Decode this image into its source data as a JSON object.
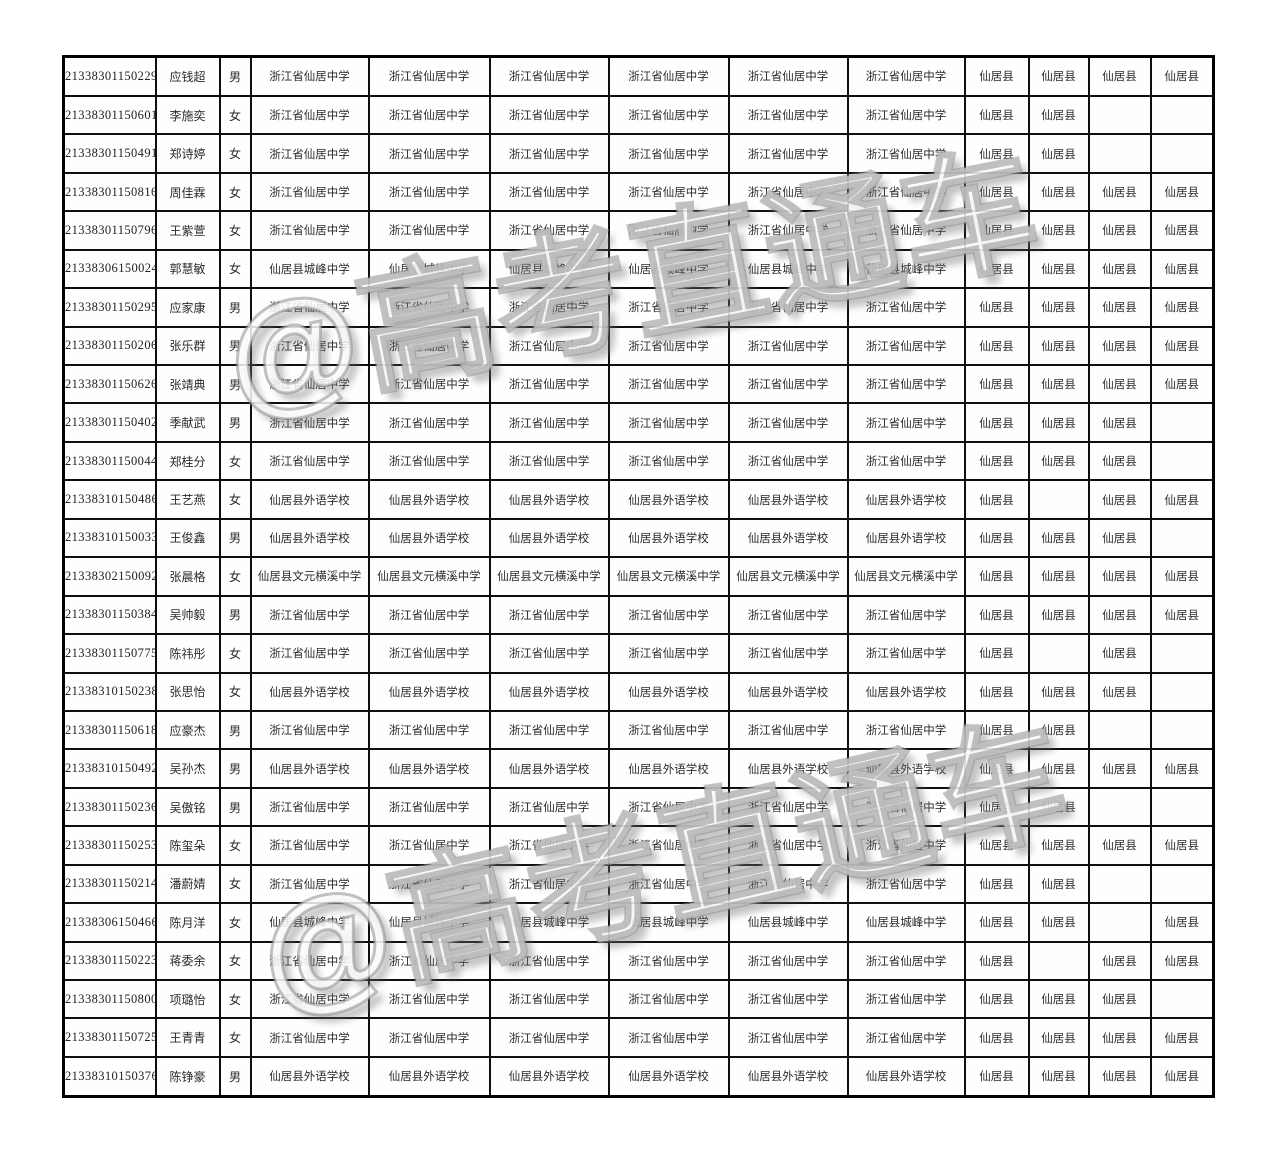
{
  "watermark": {
    "text": "@高考直通车",
    "stroke_color": "#8f8f8f"
  },
  "table": {
    "grid_color": "#0f0f0f",
    "rows": [
      {
        "id": "21338301150229",
        "name": "应钱超",
        "gender": "男",
        "school": "浙江省仙居中学",
        "counties": [
          "仙居县",
          "仙居县",
          "仙居县",
          "仙居县"
        ]
      },
      {
        "id": "21338301150601",
        "name": "李施奕",
        "gender": "女",
        "school": "浙江省仙居中学",
        "counties": [
          "仙居县",
          "仙居县",
          "",
          ""
        ]
      },
      {
        "id": "21338301150491",
        "name": "郑诗婷",
        "gender": "女",
        "school": "浙江省仙居中学",
        "counties": [
          "仙居县",
          "仙居县",
          "",
          ""
        ]
      },
      {
        "id": "21338301150816",
        "name": "周佳霖",
        "gender": "女",
        "school": "浙江省仙居中学",
        "counties": [
          "仙居县",
          "仙居县",
          "仙居县",
          "仙居县"
        ]
      },
      {
        "id": "21338301150796",
        "name": "王紫萱",
        "gender": "女",
        "school": "浙江省仙居中学",
        "counties": [
          "仙居县",
          "仙居县",
          "仙居县",
          "仙居县"
        ]
      },
      {
        "id": "21338306150024",
        "name": "郭慧敏",
        "gender": "女",
        "school": "仙居县城峰中学",
        "counties": [
          "仙居县",
          "仙居县",
          "仙居县",
          "仙居县"
        ]
      },
      {
        "id": "21338301150295",
        "name": "应家康",
        "gender": "男",
        "school": "浙江省仙居中学",
        "counties": [
          "仙居县",
          "仙居县",
          "仙居县",
          "仙居县"
        ]
      },
      {
        "id": "21338301150206",
        "name": "张乐群",
        "gender": "男",
        "school": "浙江省仙居中学",
        "counties": [
          "仙居县",
          "仙居县",
          "仙居县",
          "仙居县"
        ]
      },
      {
        "id": "21338301150626",
        "name": "张靖典",
        "gender": "男",
        "school": "浙江省仙居中学",
        "counties": [
          "仙居县",
          "仙居县",
          "仙居县",
          "仙居县"
        ]
      },
      {
        "id": "21338301150402",
        "name": "季献武",
        "gender": "男",
        "school": "浙江省仙居中学",
        "counties": [
          "仙居县",
          "仙居县",
          "仙居县",
          ""
        ]
      },
      {
        "id": "21338301150044",
        "name": "郑桂分",
        "gender": "女",
        "school": "浙江省仙居中学",
        "counties": [
          "仙居县",
          "仙居县",
          "仙居县",
          ""
        ]
      },
      {
        "id": "21338310150486",
        "name": "王艺燕",
        "gender": "女",
        "school": "仙居县外语学校",
        "counties": [
          "仙居县",
          "",
          "仙居县",
          "仙居县"
        ]
      },
      {
        "id": "21338310150033",
        "name": "王俊鑫",
        "gender": "男",
        "school": "仙居县外语学校",
        "counties": [
          "仙居县",
          "仙居县",
          "仙居县",
          ""
        ]
      },
      {
        "id": "21338302150092",
        "name": "张晨格",
        "gender": "女",
        "school": "仙居县文元横溪中学",
        "counties": [
          "仙居县",
          "仙居县",
          "仙居县",
          "仙居县"
        ]
      },
      {
        "id": "21338301150384",
        "name": "吴帅毅",
        "gender": "男",
        "school": "浙江省仙居中学",
        "counties": [
          "仙居县",
          "仙居县",
          "仙居县",
          "仙居县"
        ]
      },
      {
        "id": "21338301150775",
        "name": "陈祎彤",
        "gender": "女",
        "school": "浙江省仙居中学",
        "counties": [
          "仙居县",
          "",
          "仙居县",
          ""
        ]
      },
      {
        "id": "21338310150238",
        "name": "张思怡",
        "gender": "女",
        "school": "仙居县外语学校",
        "counties": [
          "仙居县",
          "仙居县",
          "仙居县",
          ""
        ]
      },
      {
        "id": "21338301150618",
        "name": "应豪杰",
        "gender": "男",
        "school": "浙江省仙居中学",
        "counties": [
          "仙居县",
          "仙居县",
          "",
          ""
        ]
      },
      {
        "id": "21338310150492",
        "name": "吴孙杰",
        "gender": "男",
        "school": "仙居县外语学校",
        "counties": [
          "仙居县",
          "仙居县",
          "仙居县",
          "仙居县"
        ]
      },
      {
        "id": "21338301150236",
        "name": "吴傲铭",
        "gender": "男",
        "school": "浙江省仙居中学",
        "counties": [
          "仙居县",
          "仙居县",
          "",
          ""
        ]
      },
      {
        "id": "21338301150253",
        "name": "陈玺朵",
        "gender": "女",
        "school": "浙江省仙居中学",
        "counties": [
          "仙居县",
          "仙居县",
          "仙居县",
          "仙居县"
        ]
      },
      {
        "id": "21338301150214",
        "name": "潘蔚婧",
        "gender": "女",
        "school": "浙江省仙居中学",
        "counties": [
          "仙居县",
          "仙居县",
          "",
          ""
        ]
      },
      {
        "id": "21338306150466",
        "name": "陈月洋",
        "gender": "女",
        "school": "仙居县城峰中学",
        "counties": [
          "仙居县",
          "仙居县",
          "",
          "仙居县"
        ]
      },
      {
        "id": "21338301150223",
        "name": "蒋委余",
        "gender": "女",
        "school": "浙江省仙居中学",
        "counties": [
          "仙居县",
          "",
          "仙居县",
          "仙居县"
        ]
      },
      {
        "id": "21338301150800",
        "name": "项璐怡",
        "gender": "女",
        "school": "浙江省仙居中学",
        "counties": [
          "仙居县",
          "仙居县",
          "仙居县",
          ""
        ]
      },
      {
        "id": "21338301150725",
        "name": "王青青",
        "gender": "女",
        "school": "浙江省仙居中学",
        "counties": [
          "仙居县",
          "仙居县",
          "仙居县",
          "仙居县"
        ]
      },
      {
        "id": "21338310150376",
        "name": "陈铮豪",
        "gender": "男",
        "school": "仙居县外语学校",
        "counties": [
          "仙居县",
          "仙居县",
          "仙居县",
          "仙居县"
        ]
      }
    ]
  }
}
